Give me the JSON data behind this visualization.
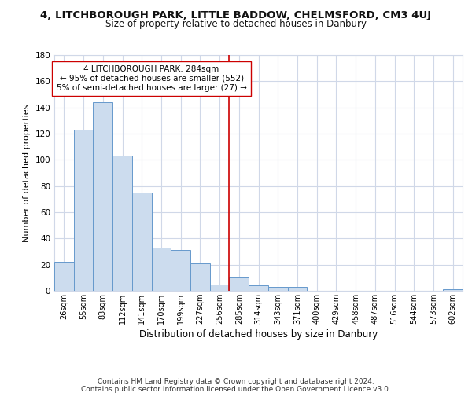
{
  "title": "4, LITCHBOROUGH PARK, LITTLE BADDOW, CHELMSFORD, CM3 4UJ",
  "subtitle": "Size of property relative to detached houses in Danbury",
  "xlabel": "Distribution of detached houses by size in Danbury",
  "ylabel": "Number of detached properties",
  "bin_labels": [
    "26sqm",
    "55sqm",
    "83sqm",
    "112sqm",
    "141sqm",
    "170sqm",
    "199sqm",
    "227sqm",
    "256sqm",
    "285sqm",
    "314sqm",
    "343sqm",
    "371sqm",
    "400sqm",
    "429sqm",
    "458sqm",
    "487sqm",
    "516sqm",
    "544sqm",
    "573sqm",
    "602sqm"
  ],
  "bar_values": [
    22,
    123,
    144,
    103,
    75,
    33,
    31,
    21,
    5,
    10,
    4,
    3,
    3,
    0,
    0,
    0,
    0,
    0,
    0,
    0,
    1
  ],
  "bar_color": "#ccdcee",
  "bar_edge_color": "#6699cc",
  "property_line_bin": 9,
  "property_line_color": "#cc0000",
  "annotation_line1": "4 LITCHBOROUGH PARK: 284sqm",
  "annotation_line2": "← 95% of detached houses are smaller (552)",
  "annotation_line3": "5% of semi-detached houses are larger (27) →",
  "annotation_box_color": "#ffffff",
  "annotation_box_edge": "#cc0000",
  "ylim": [
    0,
    180
  ],
  "yticks": [
    0,
    20,
    40,
    60,
    80,
    100,
    120,
    140,
    160,
    180
  ],
  "footer_line1": "Contains HM Land Registry data © Crown copyright and database right 2024.",
  "footer_line2": "Contains public sector information licensed under the Open Government Licence v3.0.",
  "bg_color": "#ffffff",
  "plot_bg_color": "#ffffff",
  "grid_color": "#d0d8e8"
}
